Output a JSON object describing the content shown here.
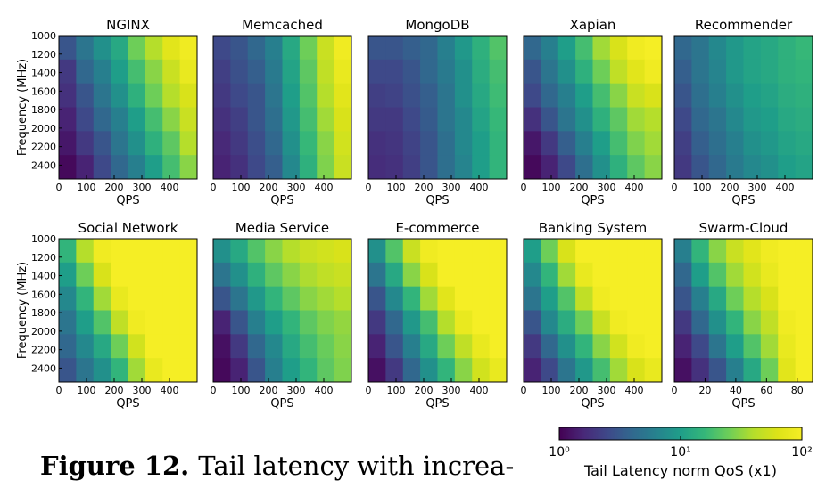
{
  "chart_data": [
    {
      "type": "heatmap",
      "title": "NGINX",
      "xlabel": "QPS",
      "ylabel": "Frequency (MHz)",
      "xlim": [
        0,
        500
      ],
      "xticks": [
        0,
        100,
        200,
        300,
        400
      ],
      "ylim": [
        1000,
        2550
      ],
      "yticks": [
        1000,
        1200,
        1400,
        1600,
        1800,
        2000,
        2200,
        2400
      ],
      "values": [
        [
          3,
          5,
          8,
          12,
          25,
          40,
          70,
          90
        ],
        [
          2,
          4,
          6,
          10,
          18,
          30,
          50,
          80
        ],
        [
          1.8,
          3,
          5,
          8,
          14,
          25,
          40,
          60
        ],
        [
          1.5,
          2.5,
          4,
          6,
          10,
          18,
          30,
          50
        ],
        [
          1.3,
          2,
          3,
          5,
          8,
          14,
          22,
          40
        ],
        [
          1.1,
          1.5,
          2.5,
          4,
          6,
          10,
          18,
          30
        ]
      ]
    },
    {
      "type": "heatmap",
      "title": "Memcached",
      "xlabel": "QPS",
      "xlim": [
        0,
        500
      ],
      "xticks": [
        0,
        100,
        200,
        300,
        400
      ],
      "ylim": [
        1000,
        2550
      ],
      "values": [
        [
          2.5,
          3,
          4,
          6,
          12,
          25,
          50,
          90
        ],
        [
          2.2,
          2.8,
          3.5,
          5.5,
          11,
          22,
          45,
          80
        ],
        [
          2,
          2.5,
          3,
          5,
          10,
          20,
          40,
          70
        ],
        [
          1.8,
          2.2,
          3,
          4.5,
          9,
          18,
          35,
          60
        ],
        [
          1.6,
          2,
          2.7,
          4,
          8,
          16,
          30,
          55
        ],
        [
          1.5,
          1.8,
          2.5,
          3.5,
          7,
          14,
          28,
          50
        ]
      ]
    },
    {
      "type": "heatmap",
      "title": "MongoDB",
      "xlabel": "QPS",
      "xlim": [
        0,
        500
      ],
      "xticks": [
        0,
        100,
        200,
        300,
        400
      ],
      "ylim": [
        1000,
        2550
      ],
      "values": [
        [
          3,
          3,
          3.5,
          4,
          6,
          9,
          14,
          20
        ],
        [
          2.5,
          2.5,
          3,
          4,
          5.5,
          8,
          13,
          18
        ],
        [
          2.2,
          2.3,
          2.8,
          3.5,
          5,
          8,
          12,
          17
        ],
        [
          2,
          2,
          2.5,
          3.3,
          5,
          7,
          11,
          16
        ],
        [
          1.8,
          1.9,
          2.3,
          3,
          4.5,
          7,
          10,
          15
        ],
        [
          1.7,
          1.8,
          2.2,
          3,
          4.5,
          6.5,
          10,
          15
        ]
      ]
    },
    {
      "type": "heatmap",
      "title": "Xapian",
      "xlabel": "QPS",
      "xlim": [
        0,
        500
      ],
      "xticks": [
        0,
        100,
        200,
        300,
        400
      ],
      "ylim": [
        1000,
        2550
      ],
      "values": [
        [
          4,
          6,
          10,
          18,
          35,
          60,
          90,
          100
        ],
        [
          3,
          5,
          8,
          14,
          25,
          45,
          70,
          90
        ],
        [
          2.5,
          4,
          6,
          10,
          18,
          30,
          50,
          60
        ],
        [
          1.8,
          3,
          5,
          8,
          14,
          22,
          35,
          40
        ],
        [
          1.3,
          2,
          3.5,
          6,
          10,
          18,
          28,
          35
        ],
        [
          1.1,
          1.5,
          2.5,
          4.5,
          8,
          14,
          22,
          30
        ]
      ]
    },
    {
      "type": "heatmap",
      "title": "Recommender",
      "xlabel": "QPS",
      "xlim": [
        0,
        500
      ],
      "xticks": [
        0,
        100,
        200,
        300,
        400
      ],
      "ylim": [
        1000,
        2550
      ],
      "values": [
        [
          4,
          5,
          7,
          9,
          11,
          12,
          14,
          16
        ],
        [
          3.5,
          5,
          6.5,
          9,
          11,
          12,
          14,
          15
        ],
        [
          3,
          4.5,
          6,
          8,
          10,
          11,
          13,
          14
        ],
        [
          2.5,
          4,
          5,
          7,
          9,
          10,
          12,
          13
        ],
        [
          2.2,
          3.5,
          4.5,
          6,
          8,
          9,
          11,
          12
        ],
        [
          2,
          3,
          4,
          5.5,
          7,
          8,
          10,
          11
        ]
      ]
    },
    {
      "type": "heatmap",
      "title": "Social Network",
      "xlabel": "QPS",
      "ylabel": "Frequency (MHz)",
      "xlim": [
        0,
        500
      ],
      "xticks": [
        0,
        100,
        200,
        300,
        400
      ],
      "ylim": [
        1000,
        2550
      ],
      "yticks": [
        1000,
        1200,
        1400,
        1600,
        1800,
        2000,
        2200,
        2400
      ],
      "values": [
        [
          15,
          40,
          90,
          100,
          100,
          100,
          100,
          100
        ],
        [
          10,
          25,
          60,
          100,
          100,
          100,
          100,
          100
        ],
        [
          7,
          15,
          35,
          80,
          100,
          100,
          100,
          100
        ],
        [
          5,
          10,
          20,
          45,
          90,
          100,
          100,
          100
        ],
        [
          4,
          7,
          12,
          25,
          55,
          100,
          100,
          100
        ],
        [
          3,
          5,
          8,
          15,
          35,
          80,
          100,
          100
        ]
      ]
    },
    {
      "type": "heatmap",
      "title": "Media Service",
      "xlabel": "QPS",
      "xlim": [
        0,
        500
      ],
      "xticks": [
        0,
        100,
        200,
        300,
        400
      ],
      "ylim": [
        1000,
        2550
      ],
      "values": [
        [
          8,
          12,
          20,
          30,
          40,
          50,
          55,
          60
        ],
        [
          5,
          8,
          14,
          22,
          30,
          38,
          45,
          50
        ],
        [
          3,
          5,
          9,
          15,
          22,
          30,
          35,
          40
        ],
        [
          1.5,
          3,
          6,
          10,
          15,
          22,
          28,
          32
        ],
        [
          1.2,
          2,
          4,
          7,
          12,
          18,
          24,
          30
        ],
        [
          1.1,
          1.5,
          3,
          6,
          10,
          15,
          22,
          28
        ]
      ]
    },
    {
      "type": "heatmap",
      "title": "E-commerce",
      "xlabel": "QPS",
      "xlim": [
        0,
        500
      ],
      "xticks": [
        0,
        100,
        200,
        300,
        400
      ],
      "ylim": [
        1000,
        2550
      ],
      "values": [
        [
          8,
          20,
          50,
          90,
          100,
          100,
          100,
          100
        ],
        [
          5,
          12,
          30,
          60,
          100,
          100,
          100,
          100
        ],
        [
          3,
          7,
          15,
          35,
          70,
          100,
          100,
          100
        ],
        [
          2,
          4,
          9,
          18,
          40,
          80,
          100,
          100
        ],
        [
          1.5,
          3,
          6,
          12,
          25,
          45,
          80,
          100
        ],
        [
          1.2,
          2,
          4,
          8,
          15,
          30,
          55,
          80
        ]
      ]
    },
    {
      "type": "heatmap",
      "title": "Banking System",
      "xlabel": "QPS",
      "xlim": [
        0,
        500
      ],
      "xticks": [
        0,
        100,
        200,
        300,
        400
      ],
      "ylim": [
        1000,
        2550
      ],
      "values": [
        [
          10,
          25,
          60,
          100,
          100,
          100,
          100,
          100
        ],
        [
          7,
          15,
          35,
          80,
          100,
          100,
          100,
          100
        ],
        [
          5,
          10,
          20,
          45,
          90,
          100,
          100,
          100
        ],
        [
          3,
          7,
          13,
          25,
          50,
          90,
          100,
          100
        ],
        [
          2,
          4,
          8,
          15,
          30,
          55,
          90,
          100
        ],
        [
          1.5,
          2.5,
          5,
          9,
          18,
          35,
          60,
          80
        ]
      ]
    },
    {
      "type": "heatmap",
      "title": "Swarm-Cloud",
      "xlabel": "QPS",
      "xlim": [
        0,
        90
      ],
      "xticks": [
        0,
        20,
        40,
        60,
        80
      ],
      "ylim": [
        1000,
        2550
      ],
      "values": [
        [
          6,
          15,
          30,
          50,
          70,
          90,
          100,
          100
        ],
        [
          4,
          10,
          20,
          35,
          55,
          80,
          100,
          100
        ],
        [
          3,
          6,
          12,
          25,
          40,
          60,
          100,
          100
        ],
        [
          2,
          4,
          8,
          15,
          30,
          45,
          90,
          100
        ],
        [
          1.5,
          2.5,
          5,
          10,
          20,
          35,
          80,
          100
        ],
        [
          1.2,
          1.8,
          3,
          6,
          12,
          25,
          70,
          100
        ]
      ]
    },
    {
      "type": "colorbar",
      "label": "Tail Latency norm QoS (x1)",
      "log": true,
      "lim": [
        1,
        100
      ],
      "ticks": [
        {
          "value": 1,
          "label": "10⁰"
        },
        {
          "value": 10,
          "label": "10¹"
        },
        {
          "value": 100,
          "label": "10²"
        }
      ]
    }
  ],
  "caption": {
    "label": "Figure 12.",
    "text": "Tail latency with increa-"
  }
}
